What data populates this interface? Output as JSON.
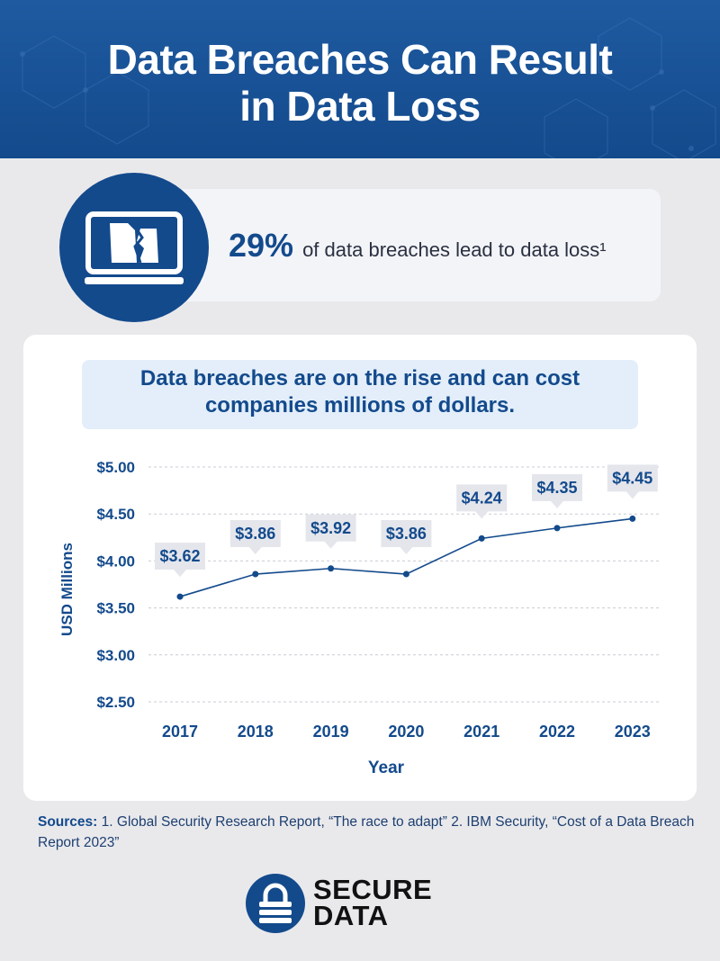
{
  "header": {
    "title_line1": "Data Breaches Can Result",
    "title_line2": "in Data Loss"
  },
  "stat": {
    "value": "29%",
    "description": "of data breaches lead to data loss¹",
    "icon": "broken-document-monitor-icon"
  },
  "chart_title": {
    "line1": "Data breaches are on the rise and can cost",
    "line2": "companies millions of dollars."
  },
  "chart_data": {
    "type": "line",
    "x": [
      "2017",
      "2018",
      "2019",
      "2020",
      "2021",
      "2022",
      "2023"
    ],
    "values": [
      3.62,
      3.86,
      3.92,
      3.86,
      4.24,
      4.35,
      4.45
    ],
    "data_labels": [
      "$3.62",
      "$3.86",
      "$3.92",
      "$3.86",
      "$4.24",
      "$4.35",
      "$4.45"
    ],
    "yticks": [
      2.5,
      3.0,
      3.5,
      4.0,
      4.5,
      5.0
    ],
    "ytick_labels": [
      "$2.50",
      "$3.00",
      "$3.50",
      "$4.00",
      "$4.50",
      "$5.00"
    ],
    "ylim": [
      2.5,
      5.0
    ],
    "xlabel": "Year",
    "ylabel": "USD Millions",
    "grid": true,
    "line_color": "#134a8c"
  },
  "sources": {
    "label": "Sources:",
    "text": " 1. Global Security Research Report, “The race to adapt” 2. IBM Security, “Cost of a Data Breach Report 2023”"
  },
  "logo": {
    "line1": "SECURE",
    "line2": "DATA",
    "icon": "padlock-icon"
  },
  "colors": {
    "brand_blue": "#134a8c",
    "label_box": "#e4e6ec",
    "title_box": "#e3eefa"
  }
}
